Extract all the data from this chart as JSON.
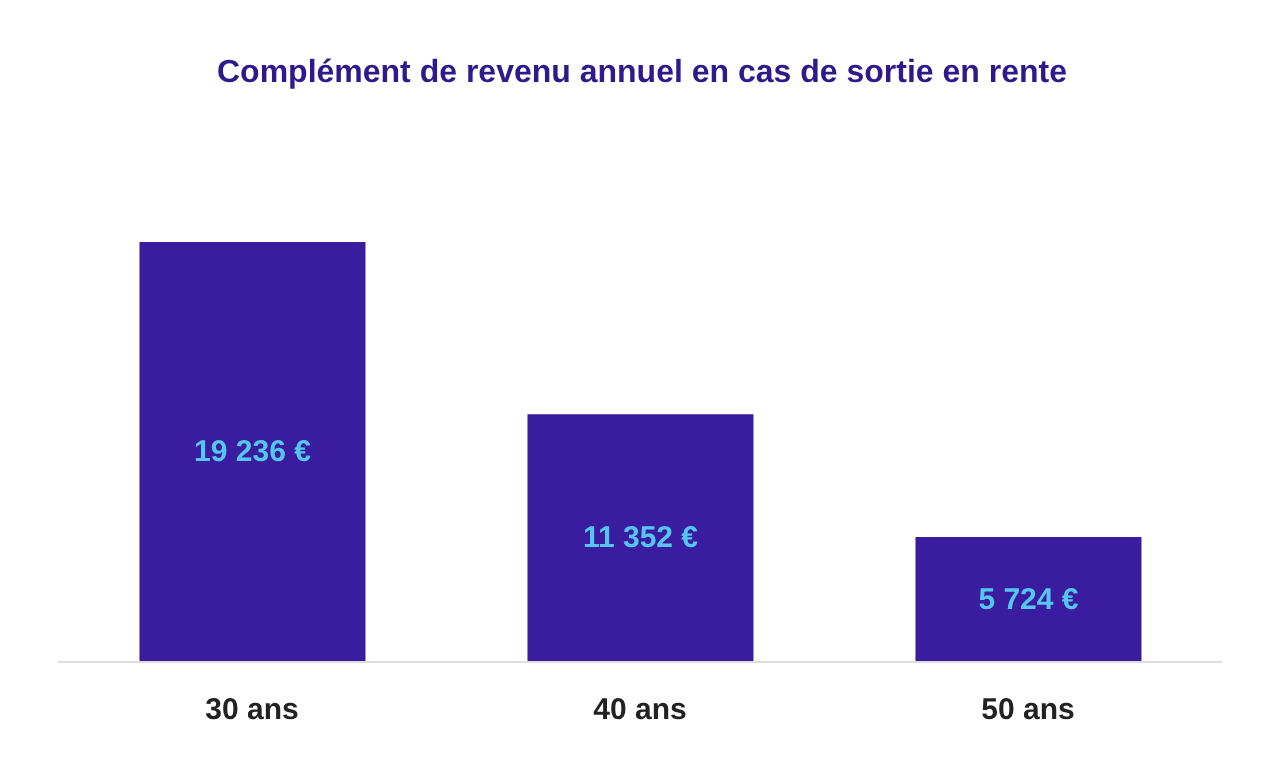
{
  "chart_data": {
    "type": "bar",
    "title": "Complément de revenu annuel en cas de sortie en rente",
    "categories": [
      "30 ans",
      "40 ans",
      "50 ans"
    ],
    "values": [
      19236,
      11352,
      5724
    ],
    "value_labels": [
      "19 236 €",
      "11 352 €",
      "5 724 €"
    ],
    "color": "#3a1c9f",
    "tick_labels": "x"
  }
}
